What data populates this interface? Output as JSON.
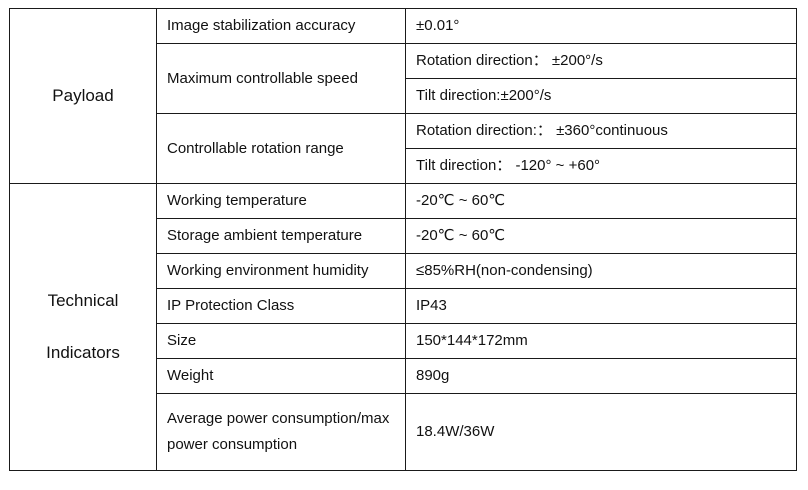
{
  "payload": {
    "category": "Payload",
    "rows": [
      {
        "item": "Image stabilization accuracy",
        "values": [
          "±0.01°"
        ]
      },
      {
        "item": "Maximum controllable speed",
        "values": [
          "Rotation direction： ±200°/s",
          "Tilt direction:±200°/s"
        ]
      },
      {
        "item": "Controllable rotation range",
        "values": [
          "Rotation direction:： ±360°continuous",
          "Tilt direction： -120° ~ +60°"
        ]
      }
    ]
  },
  "technical": {
    "category_line1": "Technical",
    "category_line2": "Indicators",
    "rows": [
      {
        "item": "Working temperature",
        "value": "-20℃ ~ 60℃"
      },
      {
        "item": "Storage ambient temperature",
        "value": "-20℃ ~ 60℃"
      },
      {
        "item": "Working environment humidity",
        "value": "≤85%RH(non-condensing)"
      },
      {
        "item": "IP Protection Class",
        "value": "IP43"
      },
      {
        "item": "Size",
        "value": "150*144*172mm"
      },
      {
        "item": "Weight",
        "value": "890g"
      },
      {
        "item": "Average power consumption/max power consumption",
        "value": "18.4W/36W"
      }
    ]
  }
}
